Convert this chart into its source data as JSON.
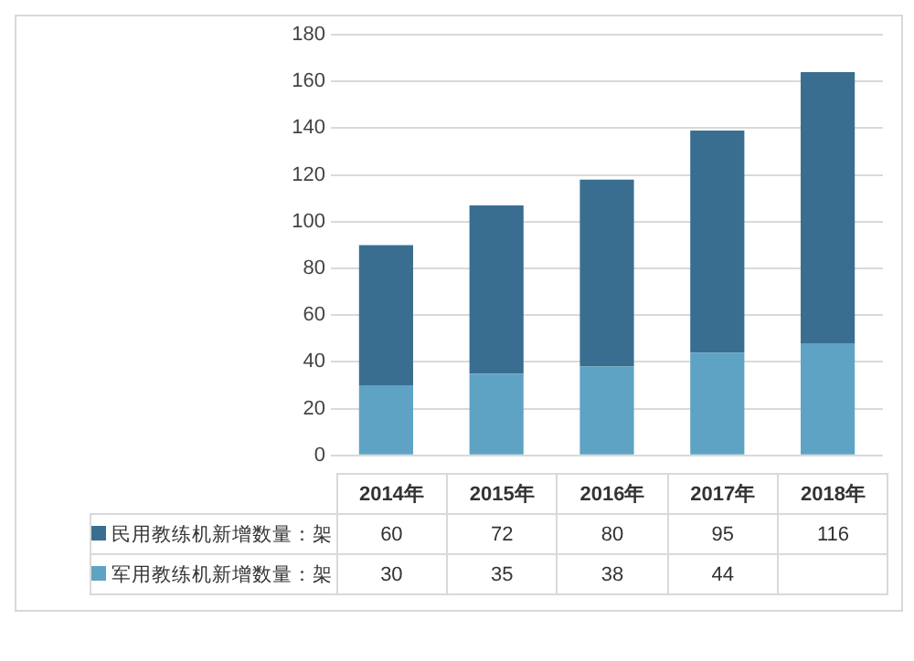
{
  "chart_data": {
    "type": "bar",
    "stacked": true,
    "categories": [
      "2014年",
      "2015年",
      "2016年",
      "2017年",
      "2018年"
    ],
    "series": [
      {
        "name": "军用教练机新增数量：架",
        "color": "#5fa3c4",
        "values": [
          30,
          35,
          38,
          44,
          48
        ],
        "value_labels": [
          "30",
          "35",
          "38",
          "44",
          null
        ]
      },
      {
        "name": "民用教练机新增数量：架",
        "color": "#3a6e90",
        "values": [
          60,
          72,
          80,
          95,
          116
        ],
        "value_labels": [
          "60",
          "72",
          "80",
          "95",
          "116"
        ]
      }
    ],
    "ylim": [
      0,
      180
    ],
    "yticks": [
      0,
      20,
      40,
      60,
      80,
      100,
      120,
      140,
      160,
      180
    ],
    "grid": "y",
    "legend": "bottom"
  }
}
